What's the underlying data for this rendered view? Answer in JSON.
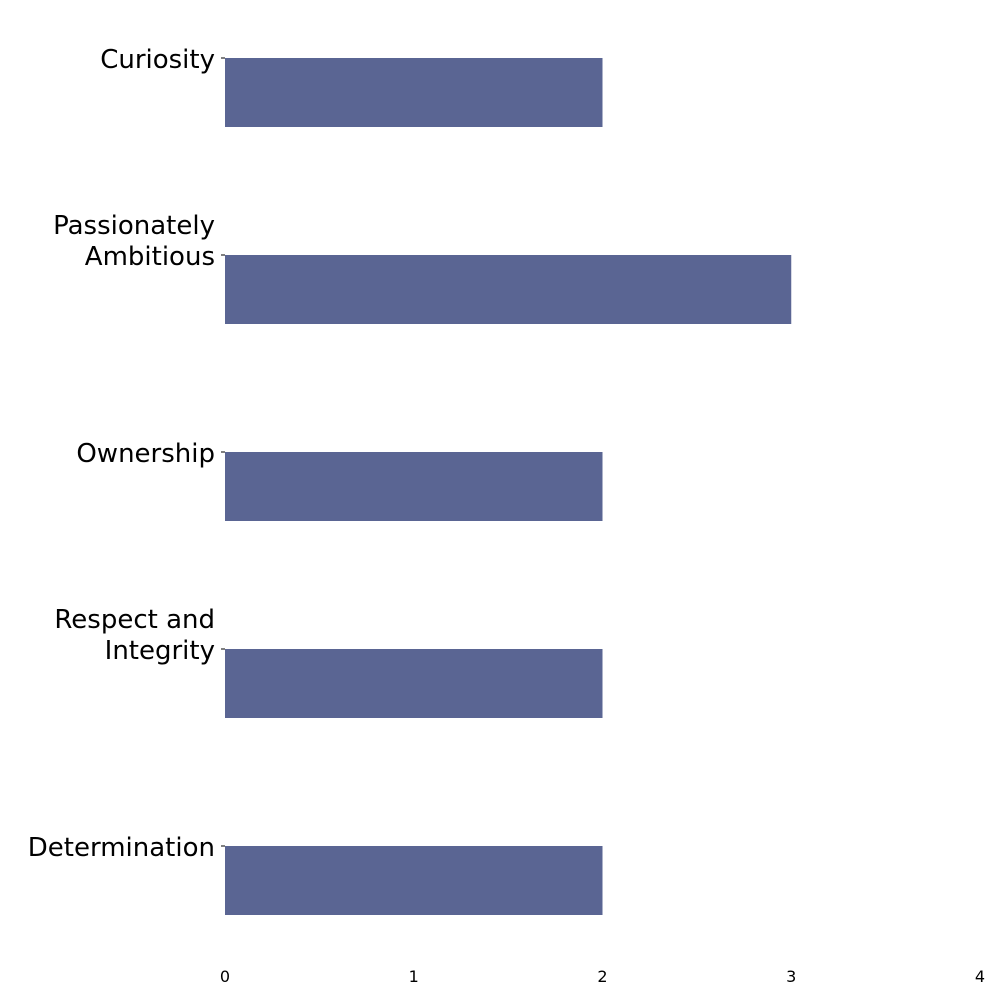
{
  "chart_data": {
    "type": "bar",
    "orientation": "horizontal",
    "categories": [
      [
        "Curiosity"
      ],
      [
        "Passionately",
        "Ambitious"
      ],
      [
        "Ownership"
      ],
      [
        "Respect and",
        "Integrity"
      ],
      [
        "Determination"
      ]
    ],
    "values": [
      2,
      3,
      2,
      2,
      2
    ],
    "xlim": [
      0,
      4
    ],
    "xticks": [
      "0",
      "1",
      "2",
      "3",
      "4"
    ],
    "title": "",
    "xlabel": "",
    "ylabel": "",
    "grid": false,
    "bar_color": "#5a6593"
  }
}
